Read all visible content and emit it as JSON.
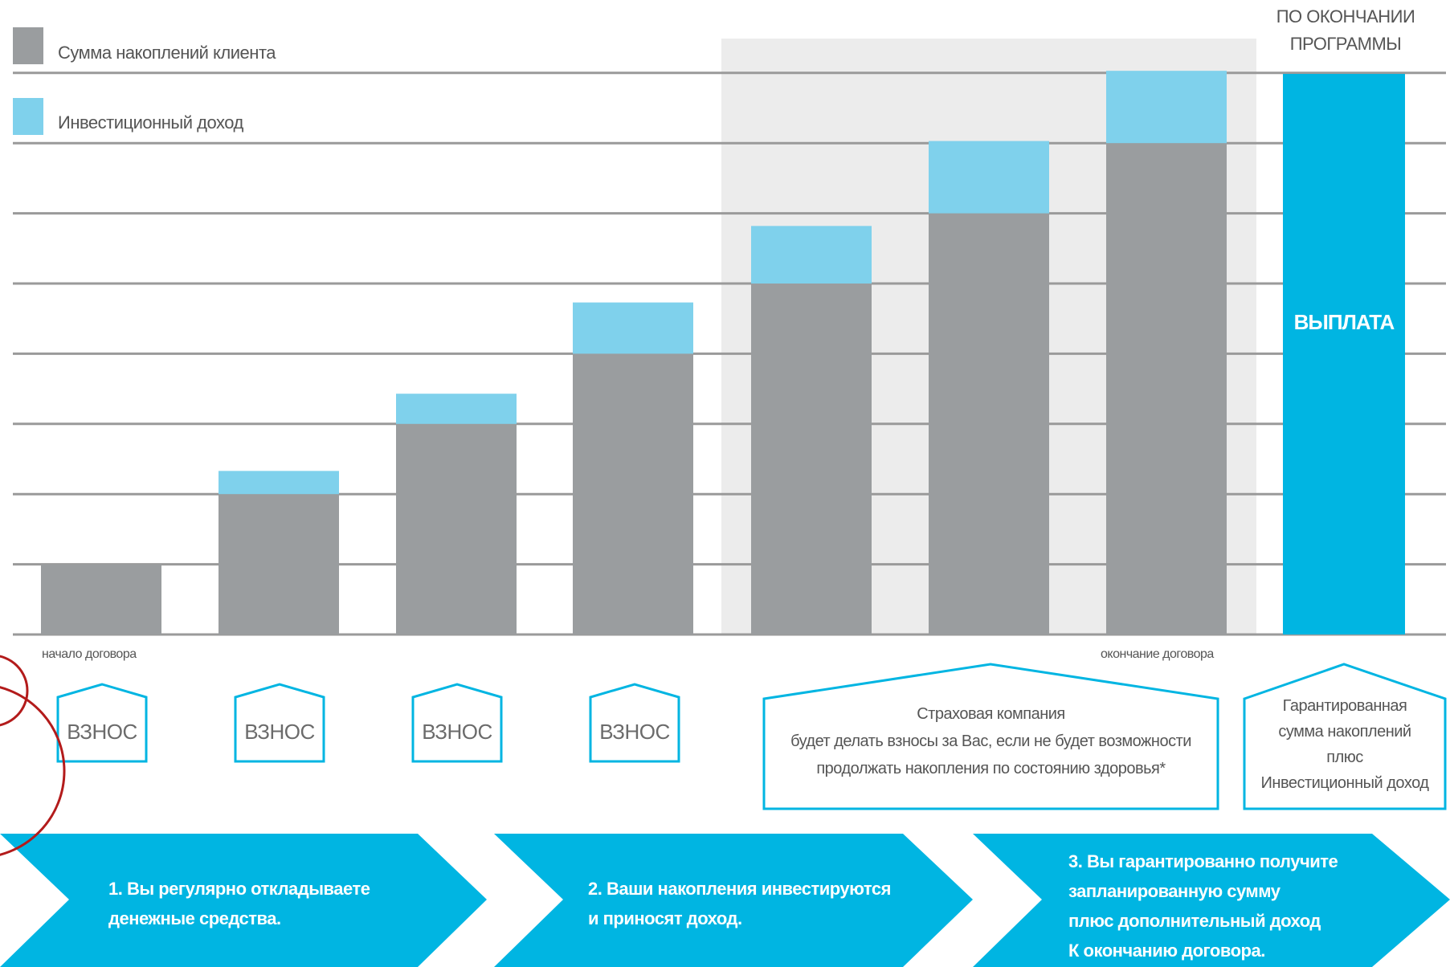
{
  "legend": {
    "savings_label": "Сумма накоплений клиента",
    "income_label": "Инвестиционный доход",
    "savings_color": "#9a9d9f",
    "income_color": "#7fd1ec"
  },
  "header_note": "ПО ОКОНЧАНИИ ПРОГРАММЫ",
  "payout_label": "ВЫПЛАТА",
  "axis": {
    "start_label": "начало договора",
    "end_label": "окончание договора"
  },
  "accent_color": "#00b5e2",
  "bars": [
    {
      "savings": 1,
      "income": 0
    },
    {
      "savings": 2,
      "income": 0.33
    },
    {
      "savings": 3,
      "income": 0.43
    },
    {
      "savings": 4,
      "income": 0.73
    },
    {
      "savings": 5,
      "income": 0.82
    },
    {
      "savings": 6,
      "income": 1.03
    },
    {
      "savings": 7,
      "income": 1.03
    }
  ],
  "houses": [
    "ВЗНОС",
    "ВЗНОС",
    "ВЗНОС",
    "ВЗНОС"
  ],
  "insurance_box": {
    "lines": [
      "Страховая компания",
      "будет делать взносы за Вас, если не будет возможности",
      "продолжать накопления по состоянию здоровья*"
    ]
  },
  "guarantee_box": {
    "lines": [
      "Гарантированная",
      "сумма накоплений",
      "плюс",
      "Инвестиционный доход"
    ]
  },
  "steps": [
    {
      "lines": [
        "1. Вы регулярно откладываете",
        "денежные  средства."
      ]
    },
    {
      "lines": [
        "2. Ваши накопления инвестируются",
        "и приносят доход."
      ]
    },
    {
      "lines": [
        "3. Вы  гарантированно получите",
        "запланированную сумму",
        "плюс дополнительный  доход",
        "К окончанию договора."
      ]
    }
  ]
}
